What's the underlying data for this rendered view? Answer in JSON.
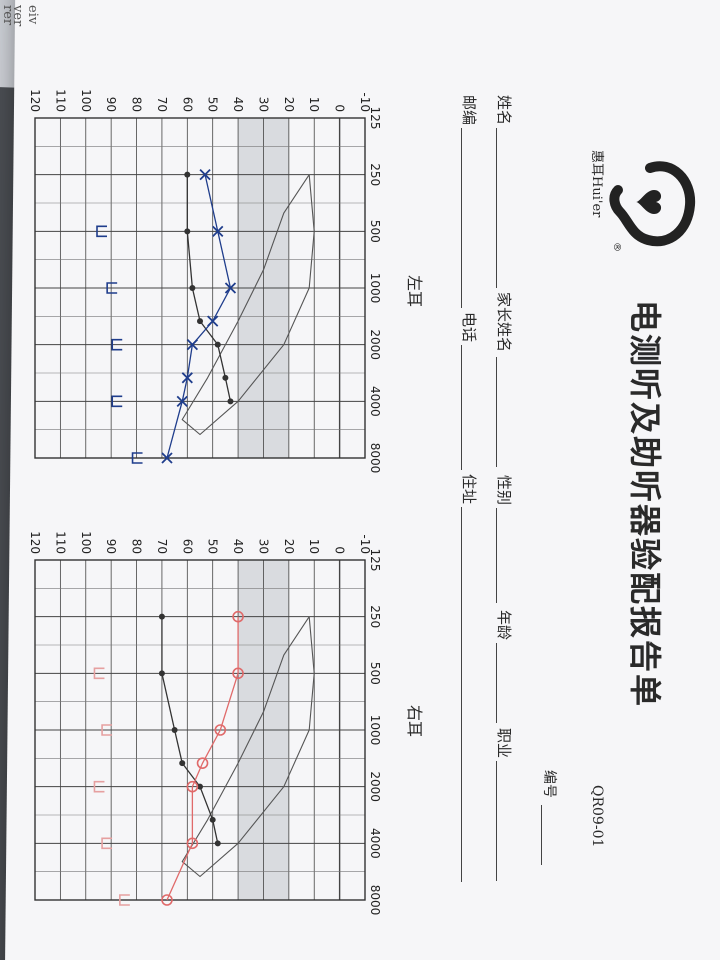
{
  "form": {
    "title": "电测听及助听器验配报告单",
    "code": "QR09-01",
    "number_label": "编号",
    "brand_name": "惠耳Hui'er",
    "fields": {
      "name": "姓名",
      "guardian": "家长姓名",
      "gender": "性别",
      "age": "年龄",
      "occupation": "职业",
      "postcode": "邮编",
      "phone": "电话",
      "address": "住址"
    }
  },
  "edge_fragments": [
    "ver",
    "eiv",
    "rer"
  ],
  "chart_data": [
    {
      "type": "line",
      "caption": "左耳",
      "x": [
        "125",
        "250",
        "500",
        "1000",
        "2000",
        "4000",
        "8000"
      ],
      "y_ticks": [
        -10,
        0,
        10,
        20,
        30,
        40,
        50,
        60,
        70,
        80,
        90,
        100,
        110,
        120
      ],
      "ylim": [
        -10,
        120
      ],
      "y_inverted": true,
      "series": [
        {
          "marker": "dot",
          "color": "#333333",
          "x": [
            "250",
            "500",
            "1000",
            "1500",
            "2000",
            "3000",
            "4000"
          ],
          "y": [
            60,
            60,
            58,
            55,
            48,
            45,
            43
          ]
        },
        {
          "marker": "x",
          "color": "#1f3d8c",
          "x": [
            "250",
            "500",
            "1000",
            "1500",
            "2000",
            "3000",
            "4000",
            "8000"
          ],
          "y": [
            53,
            48,
            43,
            50,
            58,
            60,
            62,
            68
          ]
        },
        {
          "marker": "bracket",
          "color": "#1f3d8c",
          "x": [
            "500",
            "1000",
            "2000",
            "4000",
            "8000"
          ],
          "y": [
            94,
            90,
            88,
            88,
            80
          ]
        }
      ]
    },
    {
      "type": "line",
      "caption": "右耳",
      "x": [
        "125",
        "250",
        "500",
        "1000",
        "2000",
        "4000",
        "8000"
      ],
      "y_ticks": [
        -10,
        0,
        10,
        20,
        30,
        40,
        50,
        60,
        70,
        80,
        90,
        100,
        110,
        120
      ],
      "ylim": [
        -10,
        120
      ],
      "y_inverted": true,
      "series": [
        {
          "marker": "dot",
          "color": "#333333",
          "x": [
            "250",
            "500",
            "1000",
            "1500",
            "2000",
            "3000",
            "4000"
          ],
          "y": [
            70,
            70,
            65,
            62,
            55,
            50,
            48
          ]
        },
        {
          "marker": "o",
          "color": "#e06a6a",
          "x": [
            "250",
            "500",
            "1000",
            "1500",
            "2000",
            "4000",
            "8000"
          ],
          "y": [
            40,
            40,
            47,
            54,
            58,
            58,
            68
          ]
        },
        {
          "marker": "bracket",
          "color": "#e6a0a0",
          "x": [
            "500",
            "1000",
            "2000",
            "4000",
            "8000"
          ],
          "y": [
            95,
            92,
            95,
            92,
            85
          ]
        }
      ]
    }
  ]
}
